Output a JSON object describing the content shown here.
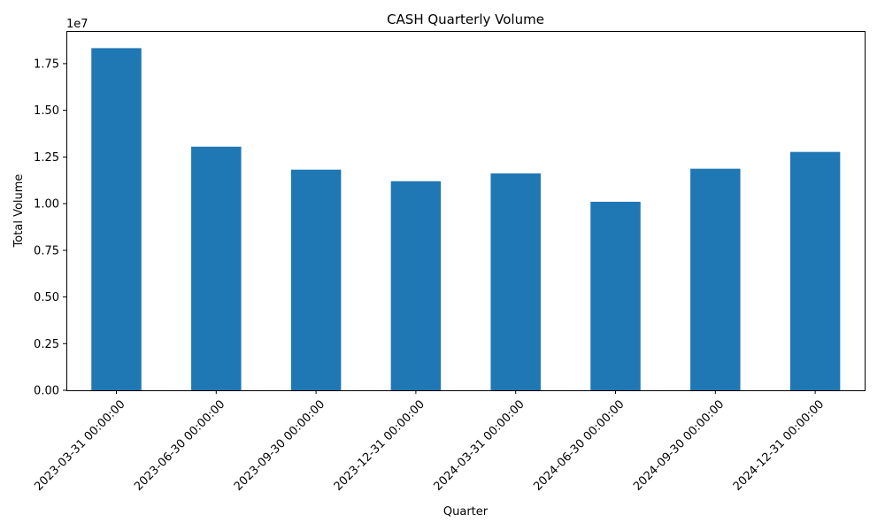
{
  "chart_data": {
    "type": "bar",
    "title": "CASH Quarterly Volume",
    "xlabel": "Quarter",
    "ylabel": "Total Volume",
    "y_scale_label": "1e7",
    "categories": [
      "2023-03-31 00:00:00",
      "2023-06-30 00:00:00",
      "2023-09-30 00:00:00",
      "2023-12-31 00:00:00",
      "2024-03-31 00:00:00",
      "2024-06-30 00:00:00",
      "2024-09-30 00:00:00",
      "2024-12-31 00:00:00"
    ],
    "values": [
      18330000,
      13050000,
      11820000,
      11200000,
      11620000,
      10100000,
      11870000,
      12770000
    ],
    "ylim": [
      0,
      19250000
    ],
    "yticks": [
      0,
      2500000,
      5000000,
      7500000,
      10000000,
      12500000,
      15000000,
      17500000
    ],
    "ytick_labels": [
      "0.00",
      "0.25",
      "0.50",
      "0.75",
      "1.00",
      "1.25",
      "1.50",
      "1.75"
    ],
    "bar_color": "#1f77b4",
    "grid": false,
    "legend": "none"
  }
}
